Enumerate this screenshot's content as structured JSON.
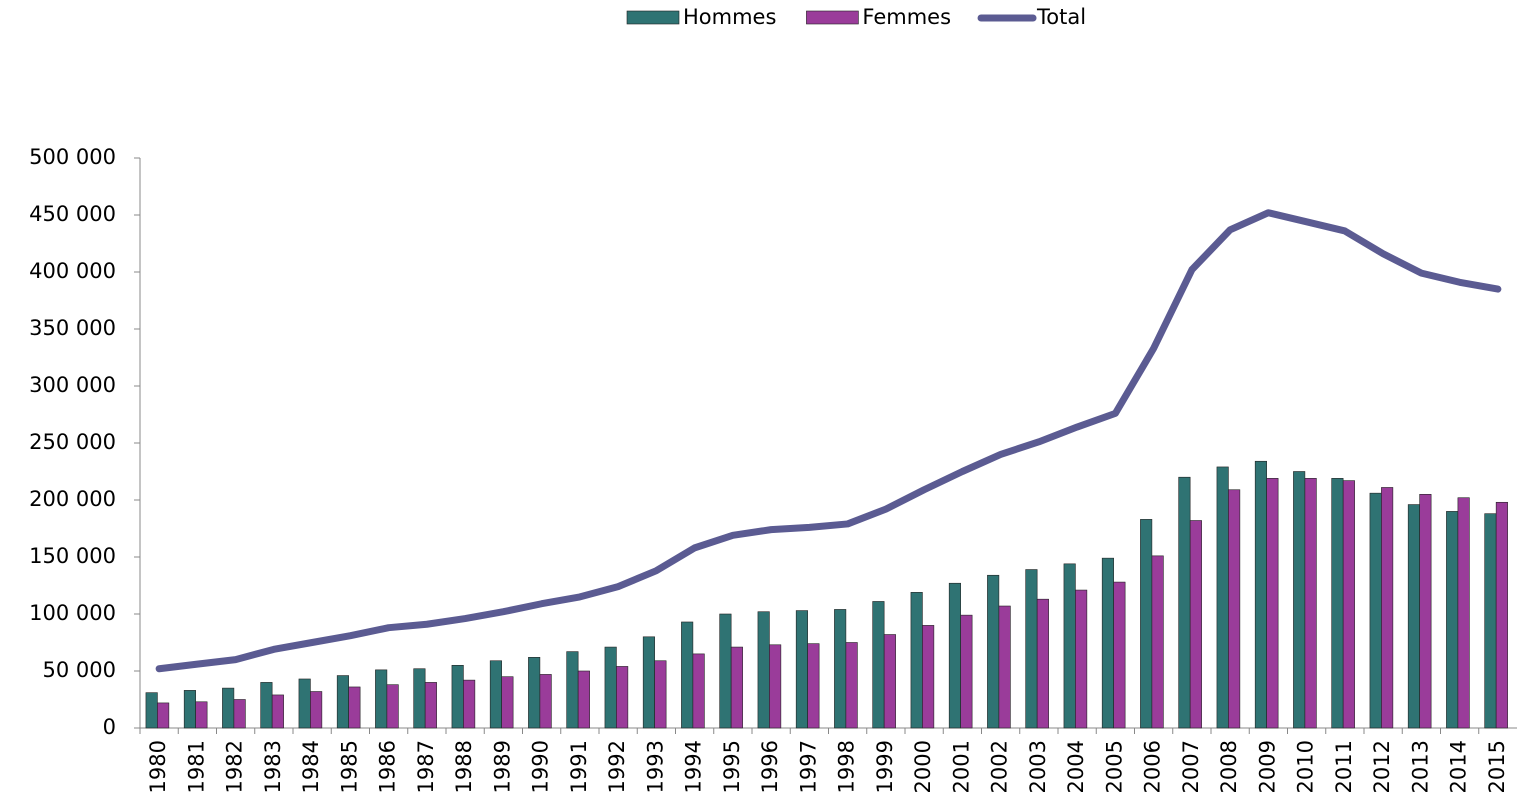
{
  "chart_data": {
    "type": "bar-line",
    "categories": [
      "1980",
      "1981",
      "1982",
      "1983",
      "1984",
      "1985",
      "1986",
      "1987",
      "1988",
      "1989",
      "1990",
      "1991",
      "1992",
      "1993",
      "1994",
      "1995",
      "1996",
      "1997",
      "1998",
      "1999",
      "2000",
      "2001",
      "2002",
      "2003",
      "2004",
      "2005",
      "2006",
      "2007",
      "2008",
      "2009",
      "2010",
      "2011",
      "2012",
      "2013",
      "2014",
      "2015"
    ],
    "series": [
      {
        "name": "Hommes",
        "kind": "bar",
        "color": "#2f7373",
        "values": [
          31000,
          33000,
          35000,
          40000,
          43000,
          46000,
          51000,
          52000,
          55000,
          59000,
          62000,
          67000,
          71000,
          80000,
          93000,
          100000,
          102000,
          103000,
          104000,
          111000,
          119000,
          127000,
          134000,
          139000,
          144000,
          149000,
          183000,
          220000,
          229000,
          234000,
          225000,
          219000,
          206000,
          196000,
          190000,
          188000
        ]
      },
      {
        "name": "Femmes",
        "kind": "bar",
        "color": "#9a3c9a",
        "values": [
          22000,
          23000,
          25000,
          29000,
          32000,
          36000,
          38000,
          40000,
          42000,
          45000,
          47000,
          50000,
          54000,
          59000,
          65000,
          71000,
          73000,
          74000,
          75000,
          82000,
          90000,
          99000,
          107000,
          113000,
          121000,
          128000,
          151000,
          182000,
          209000,
          219000,
          219000,
          217000,
          211000,
          205000,
          202000,
          198000
        ]
      },
      {
        "name": "Total",
        "kind": "line",
        "color": "#5b5b92",
        "values": [
          52000,
          56000,
          60000,
          69000,
          75000,
          81000,
          88000,
          91000,
          96000,
          102000,
          109000,
          115000,
          124000,
          138000,
          158000,
          169000,
          174000,
          176000,
          179000,
          192000,
          209000,
          225000,
          240000,
          251000,
          264000,
          276000,
          333000,
          402000,
          437000,
          452000,
          444000,
          436000,
          416000,
          399000,
          391000,
          385000
        ]
      }
    ],
    "ylim": [
      0,
      500000
    ],
    "yticks": [
      0,
      {
        "value": 50000,
        "label": "50 000"
      },
      {
        "value": 100000,
        "label": "100 000"
      },
      {
        "value": 150000,
        "label": "150 000"
      },
      {
        "value": 200000,
        "label": "200 000"
      },
      {
        "value": 250000,
        "label": "250 000"
      },
      {
        "value": 300000,
        "label": "300 000"
      },
      {
        "value": 350000,
        "label": "350 000"
      },
      {
        "value": 400000,
        "label": "400 000"
      },
      {
        "value": 450000,
        "label": "450 000"
      },
      {
        "value": 500000,
        "label": "500 000"
      }
    ],
    "legend": "top"
  }
}
